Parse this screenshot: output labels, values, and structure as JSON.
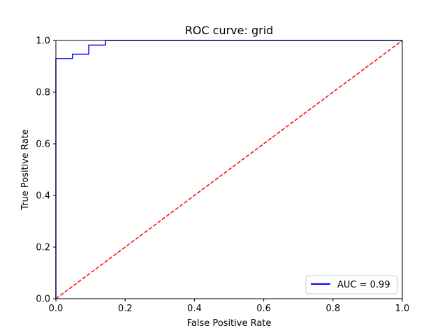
{
  "chart_data": {
    "type": "line",
    "title": "ROC curve: grid",
    "xlabel": "False Positive Rate",
    "ylabel": "True Positive Rate",
    "xlim": [
      0,
      1
    ],
    "ylim": [
      0,
      1
    ],
    "xticks": [
      "0.0",
      "0.2",
      "0.4",
      "0.6",
      "0.8",
      "1.0"
    ],
    "yticks": [
      "0.0",
      "0.2",
      "0.4",
      "0.6",
      "0.8",
      "1.0"
    ],
    "grid": false,
    "legend": {
      "position": "lower-right",
      "entries": [
        "AUC = 0.99"
      ]
    },
    "series": [
      {
        "name": "AUC = 0.99",
        "color": "#0000ff",
        "style": "solid",
        "x": [
          0,
          0,
          0.048,
          0.048,
          0.095,
          0.095,
          0.143,
          0.143,
          1
        ],
        "y": [
          0,
          0.93,
          0.93,
          0.947,
          0.947,
          0.982,
          0.982,
          1,
          1
        ]
      },
      {
        "color": "#ff0000",
        "style": "dashed",
        "x": [
          0,
          1
        ],
        "y": [
          0,
          1
        ]
      }
    ]
  }
}
